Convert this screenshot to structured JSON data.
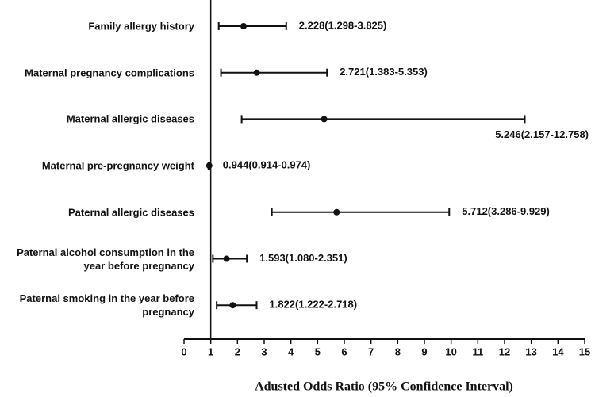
{
  "chart_data": {
    "type": "forest",
    "categories": [
      "Family allergy history",
      "Maternal pregnancy complications",
      "Maternal allergic diseases",
      "Maternal pre-pregnancy weight",
      "Paternal allergic diseases",
      "Paternal alcohol consumption in the year before pregnancy",
      "Paternal smoking in the year before pregnancy"
    ],
    "values": [
      2.228,
      2.721,
      5.246,
      0.944,
      5.712,
      1.593,
      1.822
    ],
    "lower": [
      1.298,
      1.383,
      2.157,
      0.914,
      3.286,
      1.08,
      1.222
    ],
    "upper": [
      3.825,
      5.353,
      12.758,
      0.974,
      9.929,
      2.351,
      2.718
    ],
    "value_labels": [
      "2.228(1.298-3.825)",
      "2.721(1.383-5.353)",
      "5.246(2.157-12.758)",
      "0.944(0.914-0.974)",
      "5.712(3.286-9.929)",
      "1.593(1.080-2.351)",
      "1.822(1.222-2.718)"
    ],
    "xlabel": "Adusted Odds Ratio (95% Confidence Interval)",
    "xlim": [
      0,
      15
    ],
    "xticks": [
      0,
      1,
      2,
      3,
      4,
      5,
      6,
      7,
      8,
      9,
      10,
      11,
      12,
      13,
      14,
      15
    ],
    "ref_line": 1,
    "color": "#111111"
  }
}
